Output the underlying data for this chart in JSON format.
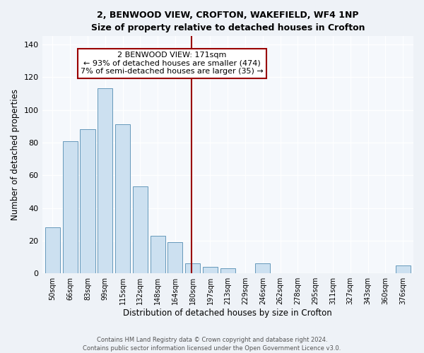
{
  "title": "2, BENWOOD VIEW, CROFTON, WAKEFIELD, WF4 1NP",
  "subtitle": "Size of property relative to detached houses in Crofton",
  "xlabel": "Distribution of detached houses by size in Crofton",
  "ylabel": "Number of detached properties",
  "bar_labels": [
    "50sqm",
    "66sqm",
    "83sqm",
    "99sqm",
    "115sqm",
    "132sqm",
    "148sqm",
    "164sqm",
    "180sqm",
    "197sqm",
    "213sqm",
    "229sqm",
    "246sqm",
    "262sqm",
    "278sqm",
    "295sqm",
    "311sqm",
    "327sqm",
    "343sqm",
    "360sqm",
    "376sqm"
  ],
  "bar_values": [
    28,
    81,
    88,
    113,
    91,
    53,
    23,
    19,
    6,
    4,
    3,
    0,
    6,
    0,
    0,
    0,
    0,
    0,
    0,
    0,
    5
  ],
  "bar_color": "#cce0f0",
  "bar_edge_color": "#6699bb",
  "vline_x_index": 8.0,
  "vline_color": "#990000",
  "annotation_title": "2 BENWOOD VIEW: 171sqm",
  "annotation_line1": "← 93% of detached houses are smaller (474)",
  "annotation_line2": "7% of semi-detached houses are larger (35) →",
  "annotation_box_color": "#990000",
  "ylim": [
    0,
    145
  ],
  "yticks": [
    0,
    20,
    40,
    60,
    80,
    100,
    120,
    140
  ],
  "footer1": "Contains HM Land Registry data © Crown copyright and database right 2024.",
  "footer2": "Contains public sector information licensed under the Open Government Licence v3.0.",
  "bg_color": "#eef2f7",
  "plot_bg_color": "#f5f8fc",
  "title_fontsize": 9,
  "subtitle_fontsize": 9,
  "bar_width": 0.85
}
